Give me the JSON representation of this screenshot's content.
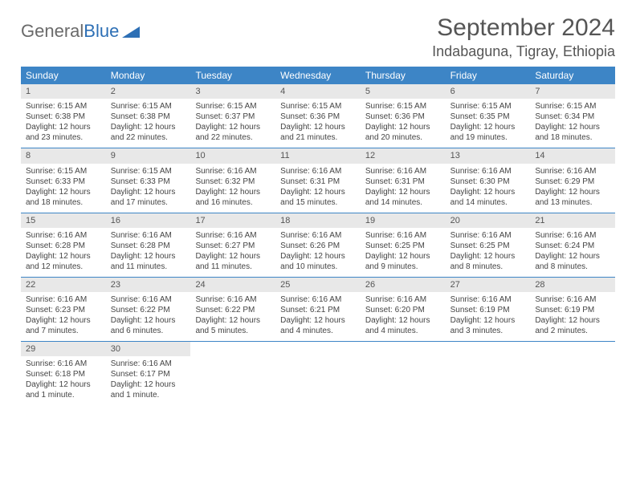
{
  "logo": {
    "text1": "General",
    "text2": "Blue"
  },
  "title": "September 2024",
  "location": "Indabaguna, Tigray, Ethiopia",
  "colors": {
    "header_bg": "#3d85c6",
    "header_text": "#ffffff",
    "daynum_bg": "#e8e8e8",
    "row_border": "#3d85c6",
    "body_text": "#444444",
    "title_text": "#555555"
  },
  "daysOfWeek": [
    "Sunday",
    "Monday",
    "Tuesday",
    "Wednesday",
    "Thursday",
    "Friday",
    "Saturday"
  ],
  "weeks": [
    [
      {
        "n": "1",
        "sr": "Sunrise: 6:15 AM",
        "ss": "Sunset: 6:38 PM",
        "d1": "Daylight: 12 hours",
        "d2": "and 23 minutes."
      },
      {
        "n": "2",
        "sr": "Sunrise: 6:15 AM",
        "ss": "Sunset: 6:38 PM",
        "d1": "Daylight: 12 hours",
        "d2": "and 22 minutes."
      },
      {
        "n": "3",
        "sr": "Sunrise: 6:15 AM",
        "ss": "Sunset: 6:37 PM",
        "d1": "Daylight: 12 hours",
        "d2": "and 22 minutes."
      },
      {
        "n": "4",
        "sr": "Sunrise: 6:15 AM",
        "ss": "Sunset: 6:36 PM",
        "d1": "Daylight: 12 hours",
        "d2": "and 21 minutes."
      },
      {
        "n": "5",
        "sr": "Sunrise: 6:15 AM",
        "ss": "Sunset: 6:36 PM",
        "d1": "Daylight: 12 hours",
        "d2": "and 20 minutes."
      },
      {
        "n": "6",
        "sr": "Sunrise: 6:15 AM",
        "ss": "Sunset: 6:35 PM",
        "d1": "Daylight: 12 hours",
        "d2": "and 19 minutes."
      },
      {
        "n": "7",
        "sr": "Sunrise: 6:15 AM",
        "ss": "Sunset: 6:34 PM",
        "d1": "Daylight: 12 hours",
        "d2": "and 18 minutes."
      }
    ],
    [
      {
        "n": "8",
        "sr": "Sunrise: 6:15 AM",
        "ss": "Sunset: 6:33 PM",
        "d1": "Daylight: 12 hours",
        "d2": "and 18 minutes."
      },
      {
        "n": "9",
        "sr": "Sunrise: 6:15 AM",
        "ss": "Sunset: 6:33 PM",
        "d1": "Daylight: 12 hours",
        "d2": "and 17 minutes."
      },
      {
        "n": "10",
        "sr": "Sunrise: 6:16 AM",
        "ss": "Sunset: 6:32 PM",
        "d1": "Daylight: 12 hours",
        "d2": "and 16 minutes."
      },
      {
        "n": "11",
        "sr": "Sunrise: 6:16 AM",
        "ss": "Sunset: 6:31 PM",
        "d1": "Daylight: 12 hours",
        "d2": "and 15 minutes."
      },
      {
        "n": "12",
        "sr": "Sunrise: 6:16 AM",
        "ss": "Sunset: 6:31 PM",
        "d1": "Daylight: 12 hours",
        "d2": "and 14 minutes."
      },
      {
        "n": "13",
        "sr": "Sunrise: 6:16 AM",
        "ss": "Sunset: 6:30 PM",
        "d1": "Daylight: 12 hours",
        "d2": "and 14 minutes."
      },
      {
        "n": "14",
        "sr": "Sunrise: 6:16 AM",
        "ss": "Sunset: 6:29 PM",
        "d1": "Daylight: 12 hours",
        "d2": "and 13 minutes."
      }
    ],
    [
      {
        "n": "15",
        "sr": "Sunrise: 6:16 AM",
        "ss": "Sunset: 6:28 PM",
        "d1": "Daylight: 12 hours",
        "d2": "and 12 minutes."
      },
      {
        "n": "16",
        "sr": "Sunrise: 6:16 AM",
        "ss": "Sunset: 6:28 PM",
        "d1": "Daylight: 12 hours",
        "d2": "and 11 minutes."
      },
      {
        "n": "17",
        "sr": "Sunrise: 6:16 AM",
        "ss": "Sunset: 6:27 PM",
        "d1": "Daylight: 12 hours",
        "d2": "and 11 minutes."
      },
      {
        "n": "18",
        "sr": "Sunrise: 6:16 AM",
        "ss": "Sunset: 6:26 PM",
        "d1": "Daylight: 12 hours",
        "d2": "and 10 minutes."
      },
      {
        "n": "19",
        "sr": "Sunrise: 6:16 AM",
        "ss": "Sunset: 6:25 PM",
        "d1": "Daylight: 12 hours",
        "d2": "and 9 minutes."
      },
      {
        "n": "20",
        "sr": "Sunrise: 6:16 AM",
        "ss": "Sunset: 6:25 PM",
        "d1": "Daylight: 12 hours",
        "d2": "and 8 minutes."
      },
      {
        "n": "21",
        "sr": "Sunrise: 6:16 AM",
        "ss": "Sunset: 6:24 PM",
        "d1": "Daylight: 12 hours",
        "d2": "and 8 minutes."
      }
    ],
    [
      {
        "n": "22",
        "sr": "Sunrise: 6:16 AM",
        "ss": "Sunset: 6:23 PM",
        "d1": "Daylight: 12 hours",
        "d2": "and 7 minutes."
      },
      {
        "n": "23",
        "sr": "Sunrise: 6:16 AM",
        "ss": "Sunset: 6:22 PM",
        "d1": "Daylight: 12 hours",
        "d2": "and 6 minutes."
      },
      {
        "n": "24",
        "sr": "Sunrise: 6:16 AM",
        "ss": "Sunset: 6:22 PM",
        "d1": "Daylight: 12 hours",
        "d2": "and 5 minutes."
      },
      {
        "n": "25",
        "sr": "Sunrise: 6:16 AM",
        "ss": "Sunset: 6:21 PM",
        "d1": "Daylight: 12 hours",
        "d2": "and 4 minutes."
      },
      {
        "n": "26",
        "sr": "Sunrise: 6:16 AM",
        "ss": "Sunset: 6:20 PM",
        "d1": "Daylight: 12 hours",
        "d2": "and 4 minutes."
      },
      {
        "n": "27",
        "sr": "Sunrise: 6:16 AM",
        "ss": "Sunset: 6:19 PM",
        "d1": "Daylight: 12 hours",
        "d2": "and 3 minutes."
      },
      {
        "n": "28",
        "sr": "Sunrise: 6:16 AM",
        "ss": "Sunset: 6:19 PM",
        "d1": "Daylight: 12 hours",
        "d2": "and 2 minutes."
      }
    ],
    [
      {
        "n": "29",
        "sr": "Sunrise: 6:16 AM",
        "ss": "Sunset: 6:18 PM",
        "d1": "Daylight: 12 hours",
        "d2": "and 1 minute."
      },
      {
        "n": "30",
        "sr": "Sunrise: 6:16 AM",
        "ss": "Sunset: 6:17 PM",
        "d1": "Daylight: 12 hours",
        "d2": "and 1 minute."
      },
      null,
      null,
      null,
      null,
      null
    ]
  ]
}
